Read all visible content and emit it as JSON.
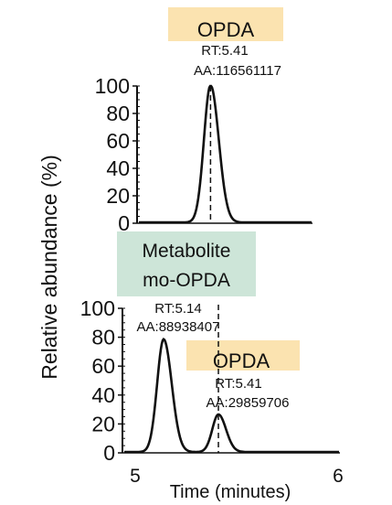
{
  "ylabel": "Relative abundance (%)",
  "xlabel": "Time (minutes)",
  "colors": {
    "opda_box": "#fbe3b0",
    "metabolite_box": "#cde5d8",
    "trace": "#111111"
  },
  "chart_data": [
    {
      "type": "line",
      "panel": "top",
      "ylim": [
        0,
        100
      ],
      "xlim": [
        5.0,
        6.0
      ],
      "yticks": [
        "0",
        "20",
        "40",
        "60",
        "80",
        "100"
      ],
      "ytick_values": [
        0,
        20,
        40,
        60,
        80,
        100
      ],
      "peaks": [
        {
          "name": "OPDA",
          "rt_label": "RT:5.41",
          "aa_label": "AA:116561117",
          "rt": 5.41,
          "height": 100,
          "width": 0.03
        }
      ]
    },
    {
      "type": "line",
      "panel": "bottom",
      "ylim": [
        0,
        100
      ],
      "xlim": [
        5.0,
        6.0
      ],
      "yticks": [
        "0",
        "20",
        "40",
        "60",
        "80",
        "100"
      ],
      "ytick_values": [
        0,
        20,
        40,
        60,
        80,
        100
      ],
      "xticks": [
        "5",
        "6"
      ],
      "xtick_values": [
        5,
        6
      ],
      "peaks": [
        {
          "name": "Metabolite\nmo-OPDA",
          "name_line1": "Metabolite",
          "name_line2": "mo-OPDA",
          "rt_label": "RT:5.14",
          "aa_label": "AA:88938407",
          "rt": 5.14,
          "height": 78,
          "width": 0.032
        },
        {
          "name": "OPDA",
          "rt_label": "RT:5.41",
          "aa_label": "AA:29859706",
          "rt": 5.41,
          "height": 26,
          "width": 0.03
        }
      ]
    }
  ]
}
